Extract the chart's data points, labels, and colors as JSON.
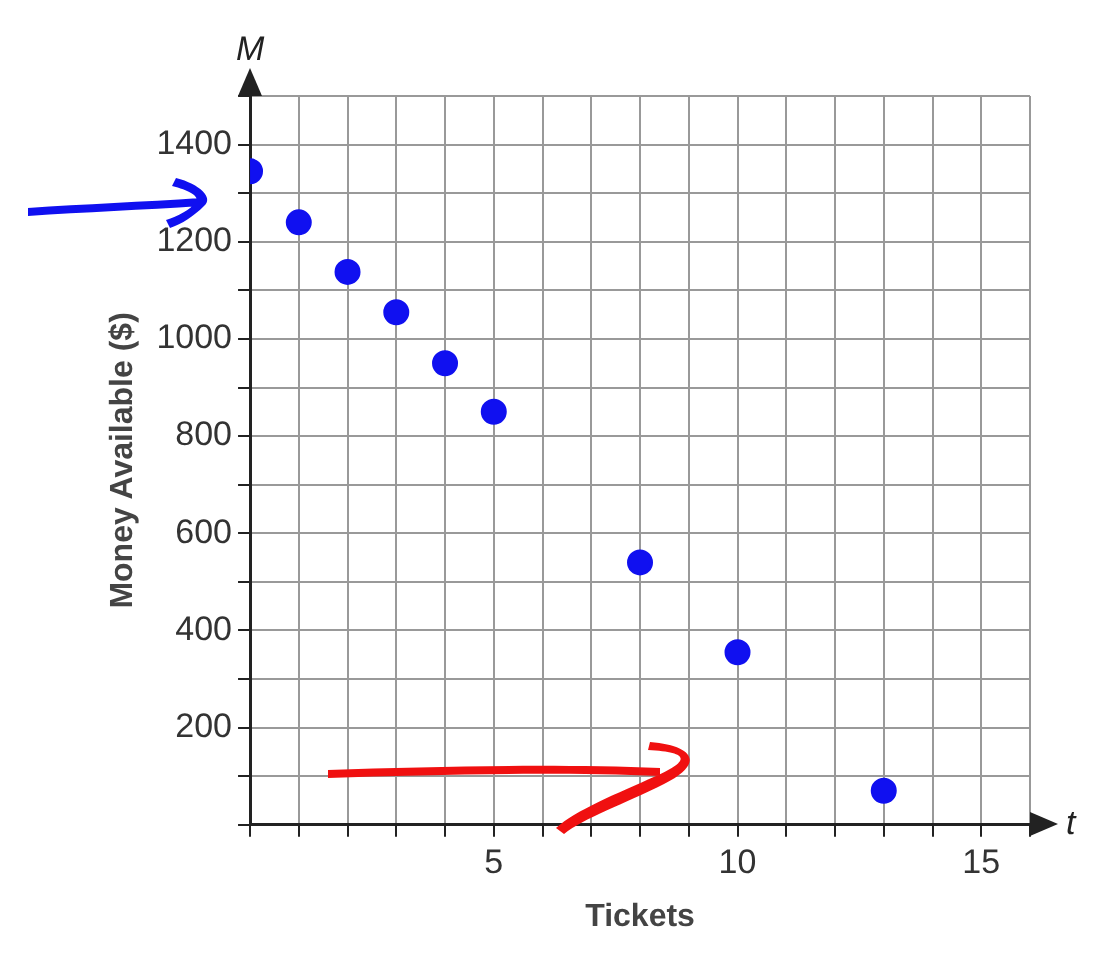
{
  "chart_data": {
    "type": "scatter",
    "xlabel": "Tickets",
    "ylabel": "Money Available ($)",
    "annotations": [
      "M",
      "t"
    ],
    "x": [
      0,
      1,
      2,
      3,
      4,
      5,
      8,
      10,
      13
    ],
    "values": [
      1345,
      1240,
      1138,
      1055,
      950,
      850,
      540,
      355,
      70
    ],
    "color": "#1010f0",
    "marker": "circle",
    "grid": true,
    "legend": false,
    "xlim": [
      0,
      16
    ],
    "ylim": [
      0,
      1500
    ],
    "xticks": [
      {
        "value": 0,
        "label": null
      },
      {
        "value": 1,
        "label": null
      },
      {
        "value": 2,
        "label": null
      },
      {
        "value": 3,
        "label": null
      },
      {
        "value": 4,
        "label": null
      },
      5,
      {
        "value": 6,
        "label": null
      },
      {
        "value": 7,
        "label": null
      },
      {
        "value": 8,
        "label": null
      },
      {
        "value": 9,
        "label": null
      },
      10,
      {
        "value": 11,
        "label": null
      },
      {
        "value": 12,
        "label": null
      },
      {
        "value": 13,
        "label": null
      },
      {
        "value": 14,
        "label": null
      },
      15,
      {
        "value": 16,
        "label": null
      }
    ],
    "yticks": [
      {
        "value": 0,
        "label": null
      },
      {
        "value": 100,
        "label": null
      },
      200,
      {
        "value": 300,
        "label": null
      },
      400,
      {
        "value": 500,
        "label": null
      },
      600,
      {
        "value": 700,
        "label": null
      },
      800,
      {
        "value": 900,
        "label": null
      },
      1000,
      {
        "value": 1100,
        "label": null
      },
      1200,
      {
        "value": 1300,
        "label": null
      },
      1400,
      {
        "value": 1500,
        "label": null
      }
    ]
  }
}
